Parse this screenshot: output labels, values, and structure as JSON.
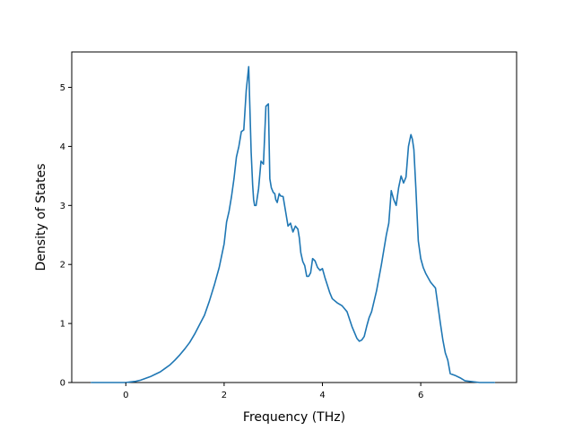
{
  "chart_data": {
    "type": "line",
    "title": "",
    "xlabel": "Frequency (THz)",
    "ylabel": "Density of States",
    "xlim": [
      -1.1,
      7.95
    ],
    "ylim": [
      0,
      5.6
    ],
    "xticks": [
      "0",
      "2",
      "4",
      "6"
    ],
    "xtick_values": [
      0,
      2,
      4,
      6
    ],
    "yticks": [
      "0",
      "1",
      "2",
      "3",
      "4",
      "5"
    ],
    "ytick_values": [
      0,
      1,
      2,
      3,
      4,
      5
    ],
    "grid": false,
    "legend": "none",
    "colors": {
      "line": "#1f77b4",
      "axis": "#000000",
      "background": "#ffffff"
    },
    "series": [
      {
        "x": [
          -0.7,
          -0.5,
          -0.3,
          -0.1,
          0.0,
          0.1,
          0.2,
          0.3,
          0.4,
          0.5,
          0.6,
          0.7,
          0.8,
          0.9,
          1.0,
          1.1,
          1.2,
          1.3,
          1.4,
          1.5,
          1.6,
          1.7,
          1.8,
          1.9,
          2.0,
          2.05,
          2.1,
          2.15,
          2.2,
          2.25,
          2.3,
          2.35,
          2.4,
          2.45,
          2.5,
          2.55,
          2.58,
          2.6,
          2.62,
          2.65,
          2.7,
          2.75,
          2.8,
          2.85,
          2.9,
          2.93,
          2.96,
          3.0,
          3.03,
          3.05,
          3.08,
          3.12,
          3.15,
          3.2,
          3.25,
          3.3,
          3.35,
          3.4,
          3.45,
          3.5,
          3.53,
          3.56,
          3.6,
          3.64,
          3.68,
          3.72,
          3.76,
          3.8,
          3.85,
          3.9,
          3.95,
          4.0,
          4.05,
          4.1,
          4.15,
          4.2,
          4.3,
          4.4,
          4.5,
          4.6,
          4.7,
          4.75,
          4.8,
          4.85,
          4.9,
          4.95,
          5.0,
          5.1,
          5.2,
          5.3,
          5.35,
          5.4,
          5.45,
          5.5,
          5.55,
          5.6,
          5.65,
          5.7,
          5.75,
          5.8,
          5.83,
          5.86,
          5.9,
          5.95,
          6.0,
          6.05,
          6.1,
          6.2,
          6.3,
          6.35,
          6.4,
          6.45,
          6.5,
          6.55,
          6.6,
          6.7,
          6.8,
          6.9,
          7.2,
          7.5
        ],
        "y": [
          0.0,
          0.0,
          0.0,
          0.0,
          0.0,
          0.01,
          0.02,
          0.04,
          0.07,
          0.1,
          0.14,
          0.18,
          0.24,
          0.3,
          0.38,
          0.47,
          0.57,
          0.68,
          0.82,
          0.98,
          1.14,
          1.38,
          1.65,
          1.95,
          2.35,
          2.72,
          2.9,
          3.15,
          3.45,
          3.82,
          4.0,
          4.25,
          4.28,
          4.95,
          5.35,
          3.9,
          3.35,
          3.1,
          3.0,
          3.0,
          3.28,
          3.75,
          3.7,
          4.68,
          4.72,
          3.45,
          3.3,
          3.22,
          3.2,
          3.1,
          3.05,
          3.2,
          3.16,
          3.15,
          2.9,
          2.65,
          2.7,
          2.55,
          2.65,
          2.6,
          2.45,
          2.2,
          2.05,
          1.98,
          1.8,
          1.8,
          1.86,
          2.1,
          2.06,
          1.95,
          1.9,
          1.93,
          1.78,
          1.65,
          1.52,
          1.42,
          1.35,
          1.3,
          1.2,
          0.95,
          0.75,
          0.7,
          0.72,
          0.78,
          0.95,
          1.1,
          1.2,
          1.55,
          2.0,
          2.5,
          2.7,
          3.25,
          3.1,
          3.0,
          3.3,
          3.5,
          3.38,
          3.48,
          4.0,
          4.2,
          4.12,
          3.95,
          3.3,
          2.4,
          2.1,
          1.95,
          1.85,
          1.7,
          1.6,
          1.3,
          1.0,
          0.72,
          0.5,
          0.38,
          0.15,
          0.12,
          0.08,
          0.03,
          0.0,
          0.0
        ]
      }
    ]
  }
}
